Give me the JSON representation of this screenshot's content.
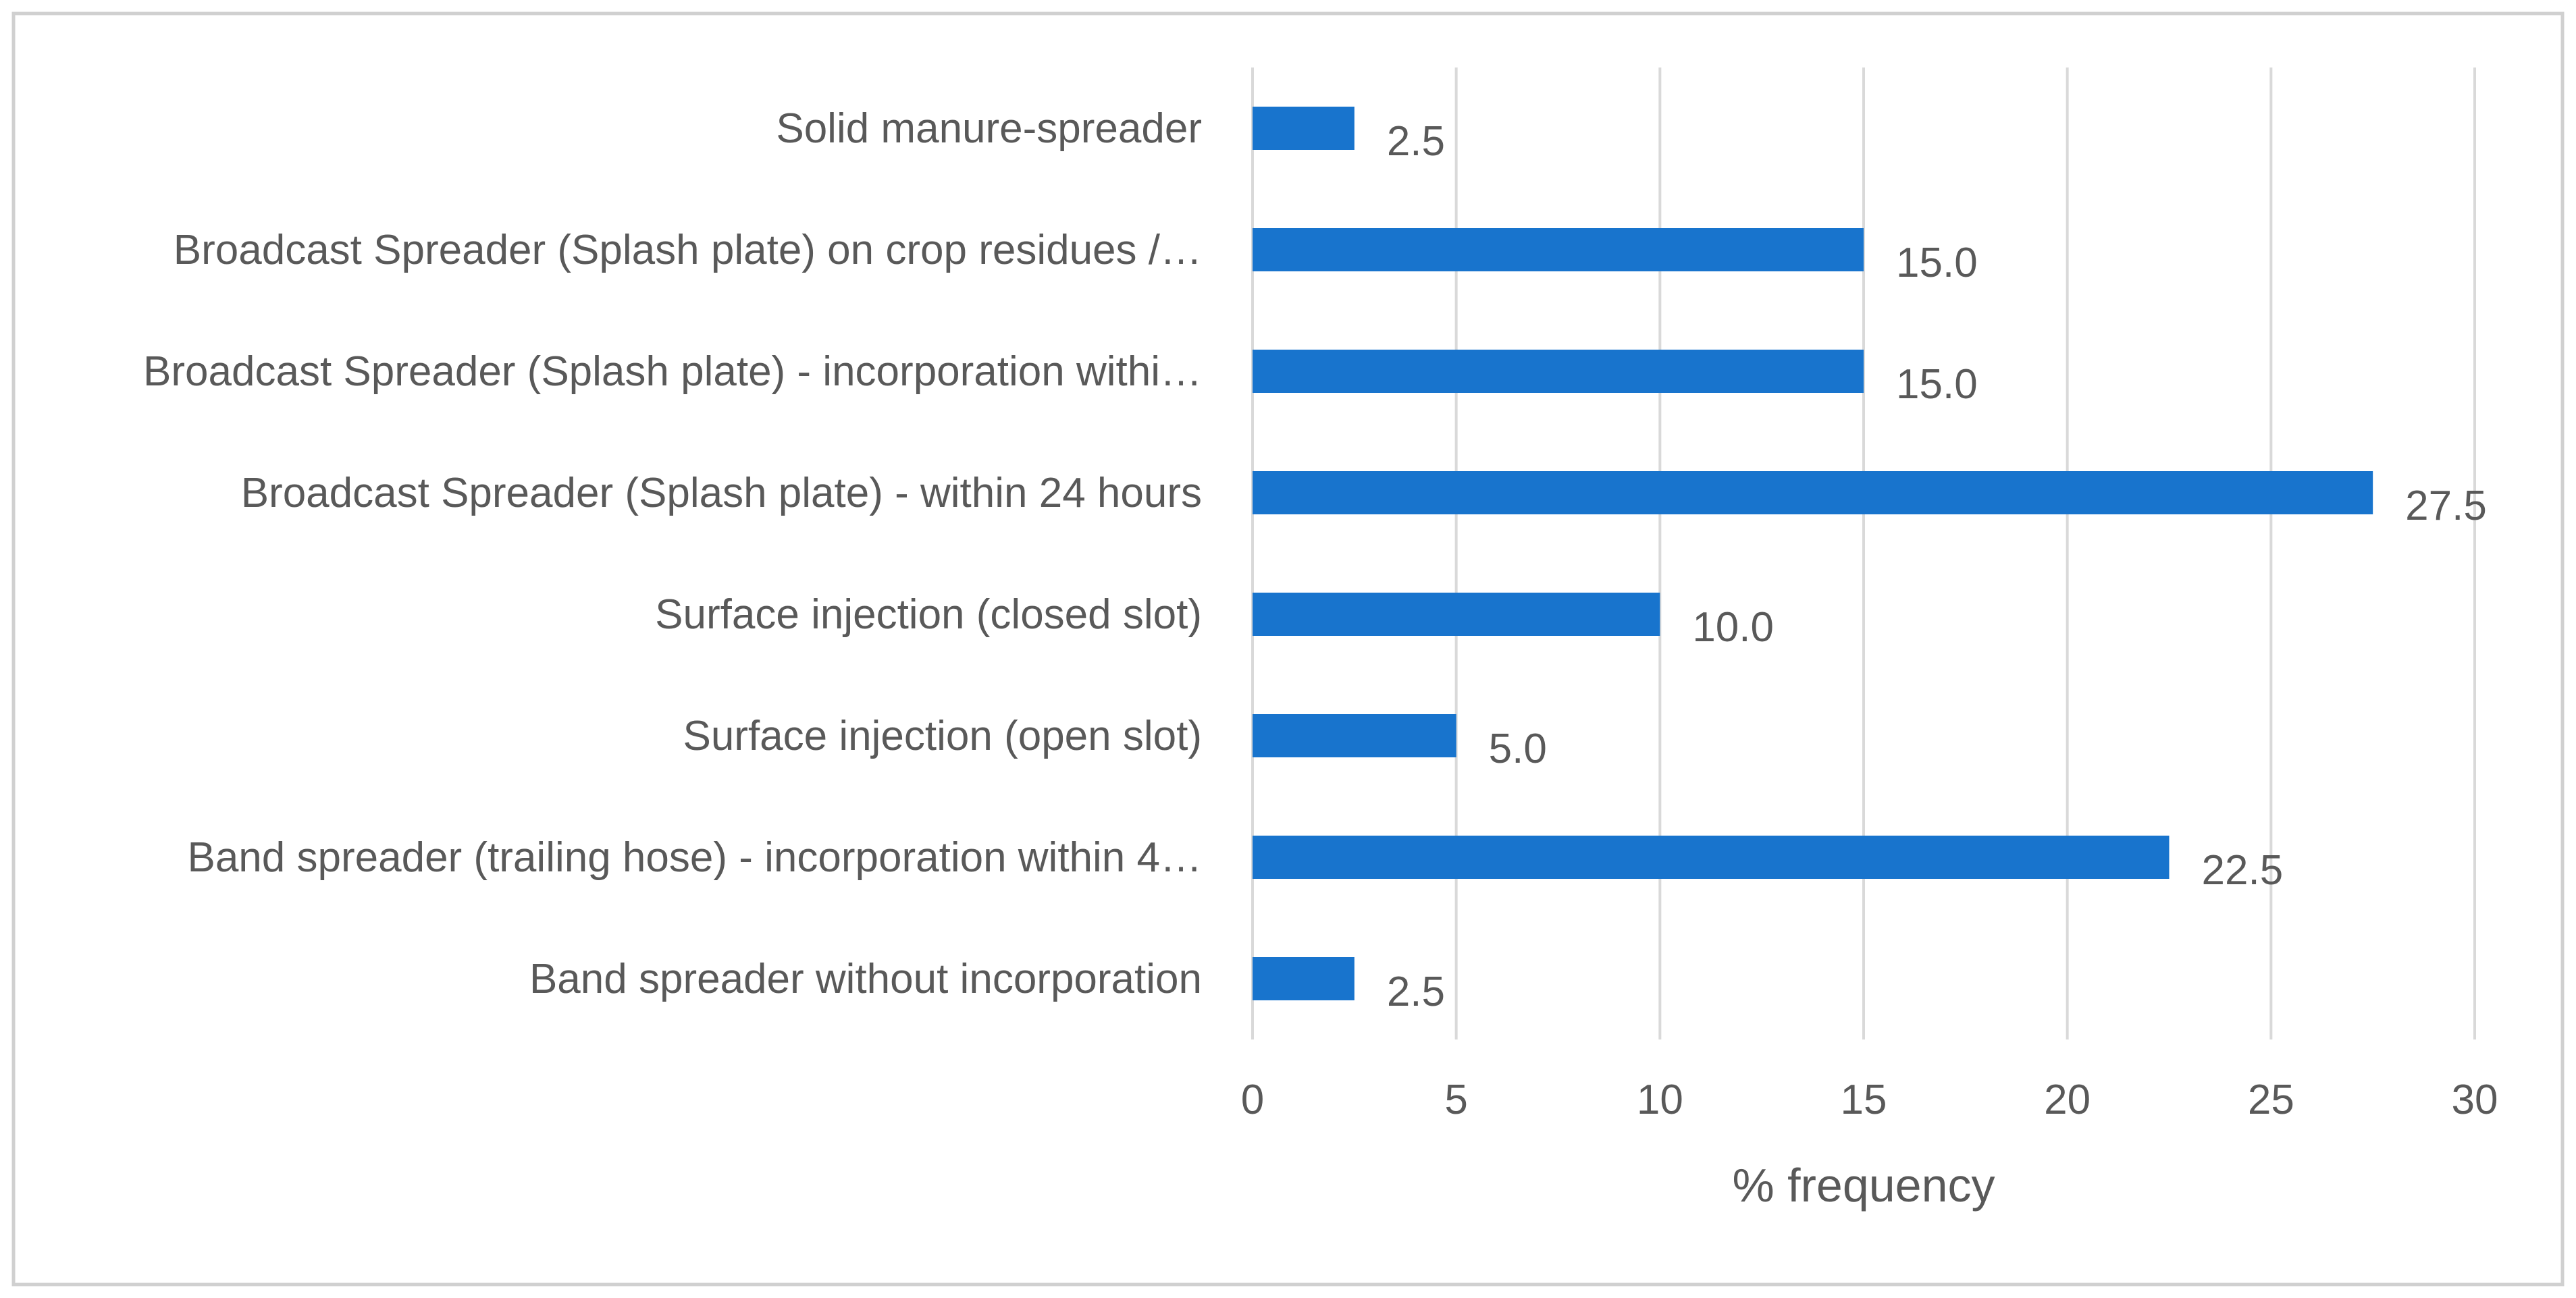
{
  "chart_data": {
    "type": "bar",
    "orientation": "horizontal",
    "categories": [
      "Solid manure-spreader",
      "Broadcast Spreader (Splash plate)  on crop residues /…",
      "Broadcast Spreader (Splash plate) - incorporation withi…",
      "Broadcast Spreader (Splash plate) - within 24 hours",
      "Surface injection (closed slot)",
      "Surface injection (open slot)",
      "Band spreader (trailing hose) - incorporation within 4…",
      "Band spreader without incorporation"
    ],
    "values": [
      2.5,
      15.0,
      15.0,
      27.5,
      10.0,
      5.0,
      22.5,
      2.5
    ],
    "data_labels": [
      "2.5",
      "15.0",
      "15.0",
      "27.5",
      "10.0",
      "5.0",
      "22.5",
      "2.5"
    ],
    "title": "",
    "xlabel": "% frequency",
    "ylabel": "",
    "xlim": [
      0,
      30
    ],
    "xticks": [
      0,
      5,
      10,
      15,
      20,
      25,
      30
    ],
    "grid": true,
    "legend": "none",
    "bar_color": "#1874CD",
    "border_color": "#d0d0d0"
  }
}
